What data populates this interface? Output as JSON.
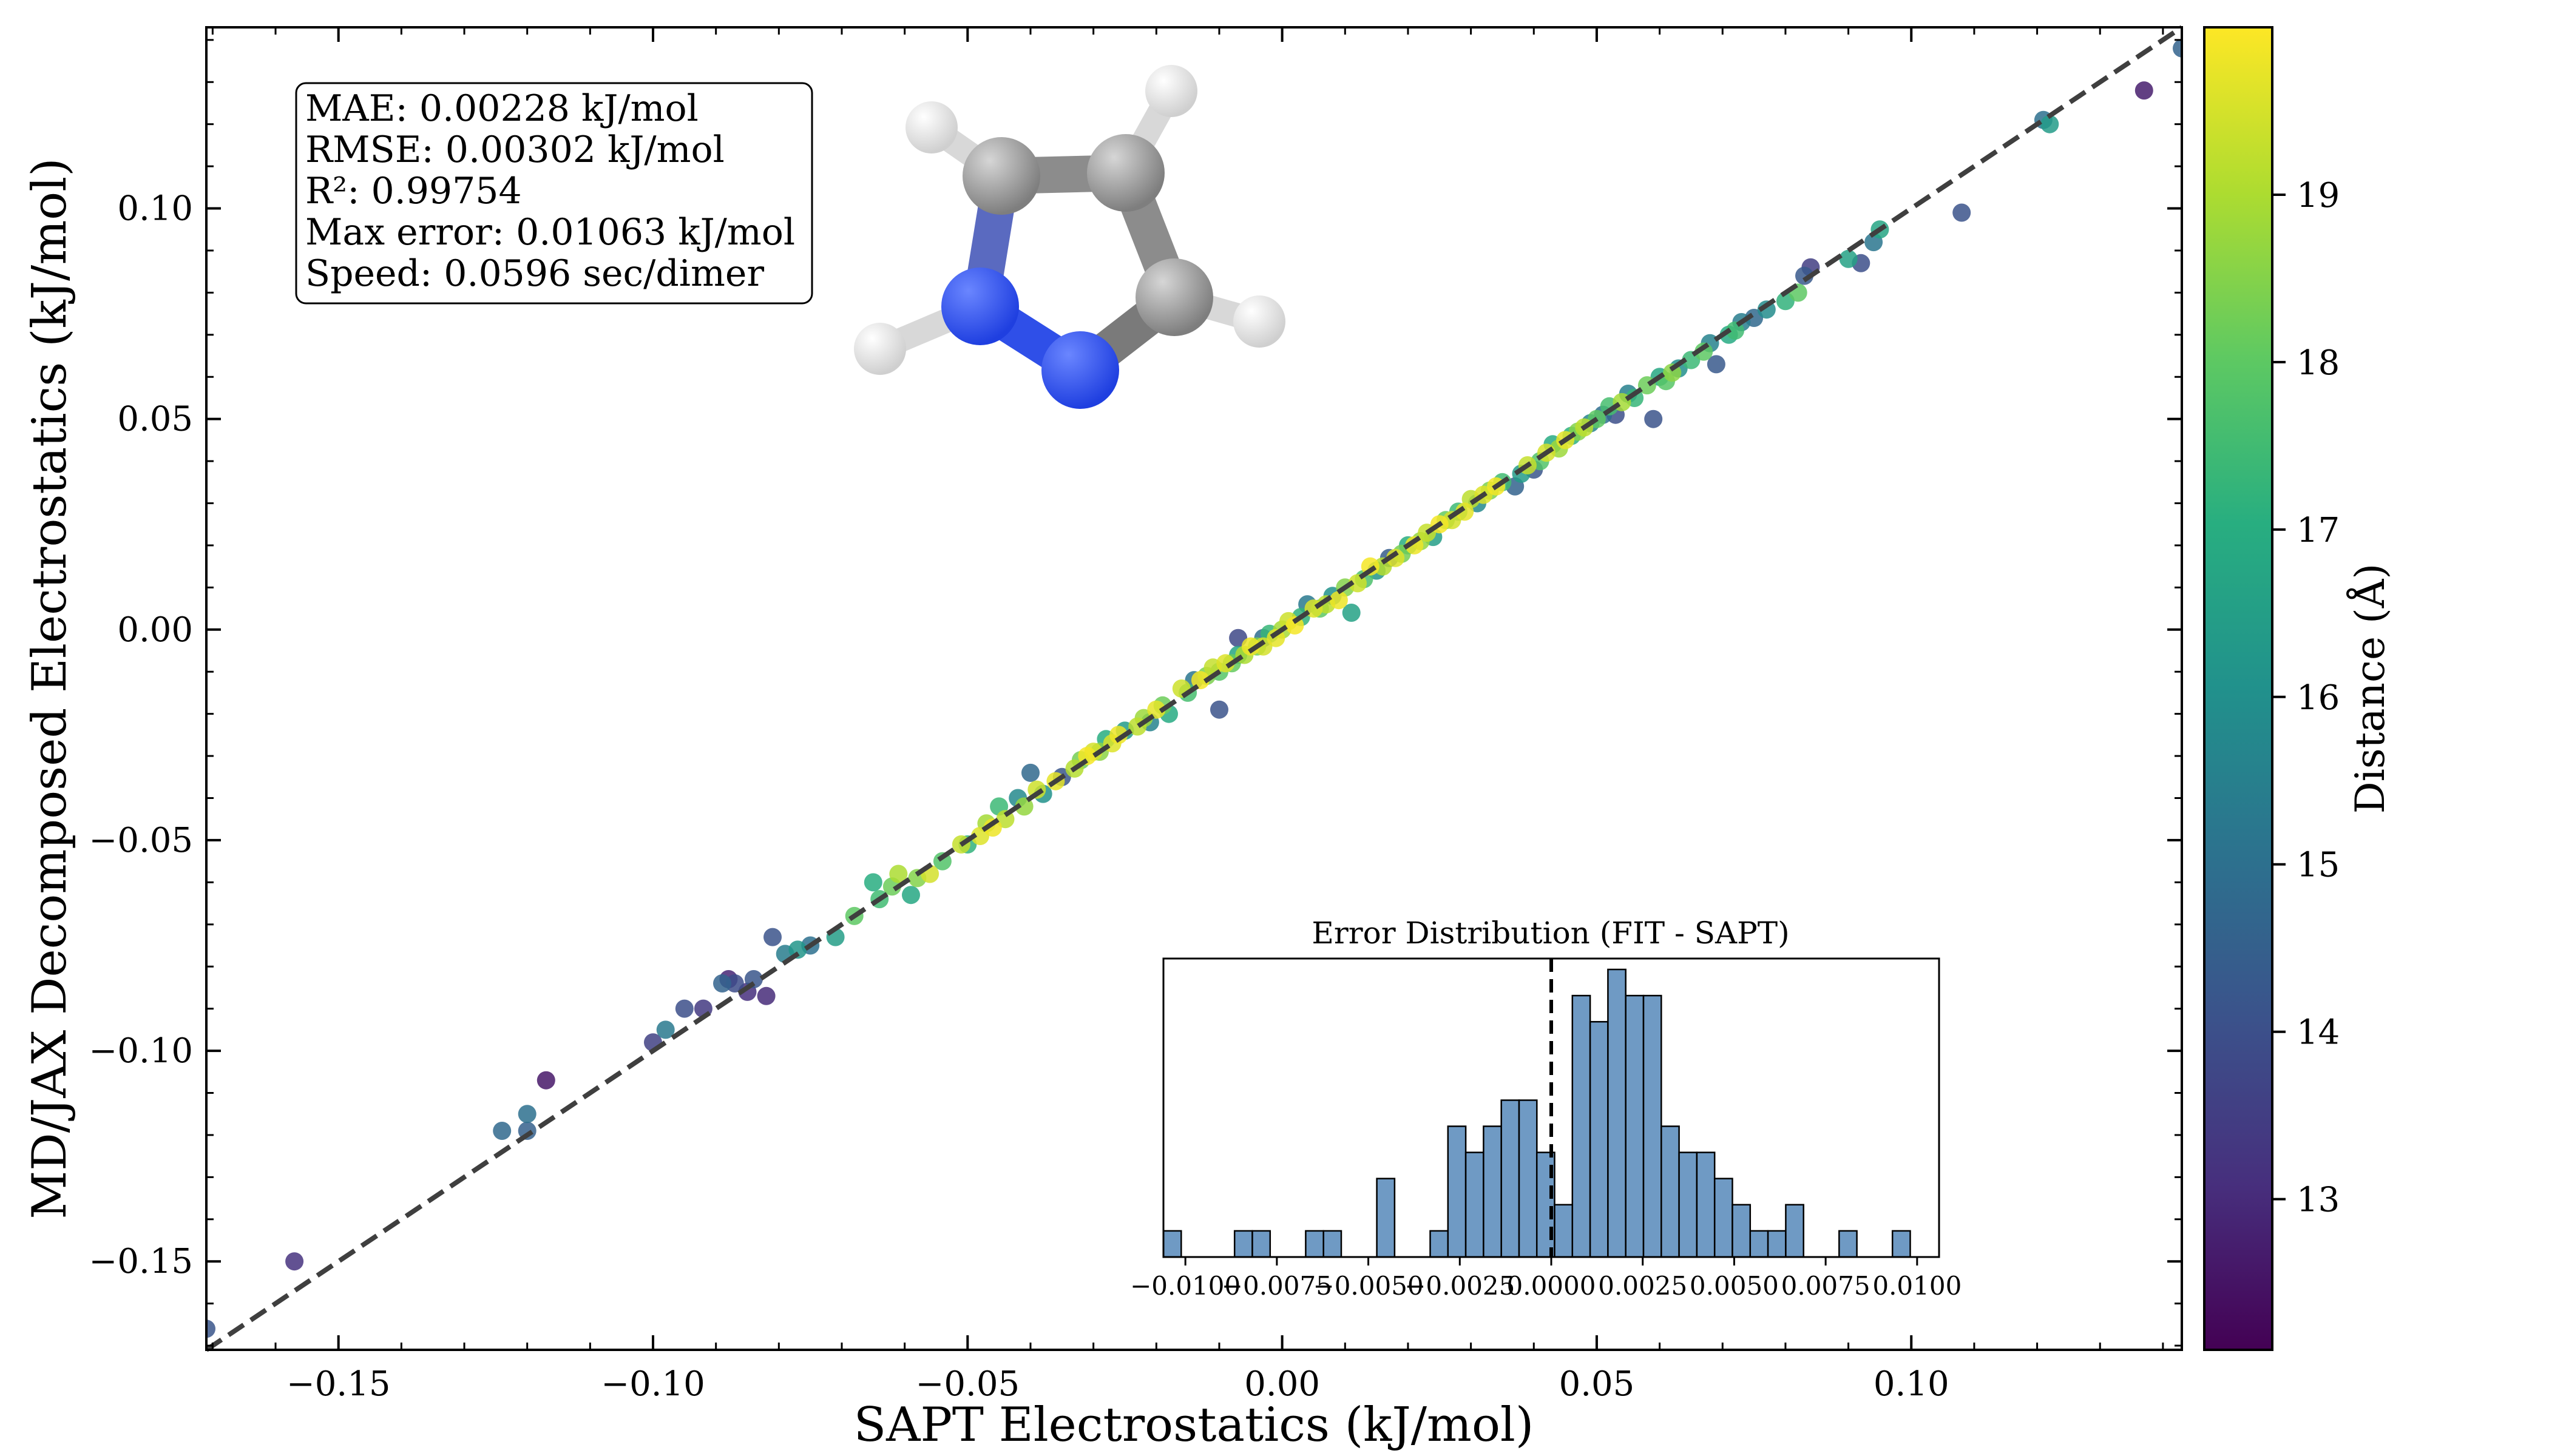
{
  "chart_data": [
    {
      "type": "scatter",
      "xlabel": "SAPT Electrostatics (kJ/mol)",
      "ylabel": "MD/JAX Decomposed Electrostatics (kJ/mol)",
      "xlim": [
        -0.171,
        0.143
      ],
      "ylim": [
        -0.171,
        0.143
      ],
      "xticks": [
        -0.15,
        -0.1,
        -0.05,
        0.0,
        0.05,
        0.1
      ],
      "xtick_labels": [
        "−0.15",
        "−0.10",
        "−0.05",
        "0.00",
        "0.05",
        "0.10"
      ],
      "yticks": [
        -0.15,
        -0.1,
        -0.05,
        0.0,
        0.05,
        0.1
      ],
      "ytick_labels": [
        "−0.15",
        "−0.10",
        "−0.05",
        "0.00",
        "0.05",
        "0.10"
      ],
      "reference_line": "y = x",
      "color_encoding": "Distance (Å)",
      "colorbar": {
        "label": "Distance (Å)",
        "range": [
          12.1,
          20.0
        ],
        "ticks": [
          13,
          14,
          15,
          16,
          17,
          18,
          19
        ],
        "tick_labels": [
          "13",
          "14",
          "15",
          "16",
          "17",
          "18",
          "19"
        ],
        "colormap": "viridis",
        "colors": [
          "#440154",
          "#472f7d",
          "#3b528b",
          "#2c728e",
          "#21918c",
          "#28ae80",
          "#5ec962",
          "#addc30",
          "#fde725"
        ]
      },
      "stats_box": [
        "MAE: 0.00228 kJ/mol",
        "RMSE: 0.00302 kJ/mol",
        "R²: 0.99754",
        "Max error: 0.01063 kJ/mol",
        "Speed: 0.0596 sec/dimer"
      ],
      "points": [
        [
          -0.171,
          -0.166,
          14.2
        ],
        [
          -0.157,
          -0.15,
          13.2
        ],
        [
          -0.124,
          -0.119,
          14.8
        ],
        [
          -0.12,
          -0.115,
          15.0
        ],
        [
          -0.12,
          -0.119,
          14.5
        ],
        [
          -0.117,
          -0.107,
          12.6
        ],
        [
          -0.1,
          -0.098,
          13.6
        ],
        [
          -0.098,
          -0.095,
          15.3
        ],
        [
          -0.095,
          -0.09,
          14.0
        ],
        [
          -0.092,
          -0.09,
          13.4
        ],
        [
          -0.089,
          -0.084,
          14.6
        ],
        [
          -0.088,
          -0.083,
          12.9
        ],
        [
          -0.087,
          -0.084,
          13.9
        ],
        [
          -0.085,
          -0.086,
          13.1
        ],
        [
          -0.084,
          -0.083,
          14.2
        ],
        [
          -0.082,
          -0.087,
          13.0
        ],
        [
          -0.081,
          -0.073,
          14.1
        ],
        [
          -0.079,
          -0.077,
          15.4
        ],
        [
          -0.077,
          -0.076,
          16.2
        ],
        [
          -0.075,
          -0.075,
          15.0
        ],
        [
          -0.071,
          -0.073,
          16.5
        ],
        [
          -0.068,
          -0.068,
          18.0
        ],
        [
          -0.065,
          -0.06,
          17.0
        ],
        [
          -0.064,
          -0.064,
          17.5
        ],
        [
          -0.062,
          -0.061,
          18.2
        ],
        [
          -0.061,
          -0.058,
          19.0
        ],
        [
          -0.059,
          -0.063,
          16.8
        ],
        [
          -0.058,
          -0.059,
          18.5
        ],
        [
          -0.056,
          -0.058,
          19.5
        ],
        [
          -0.054,
          -0.055,
          17.8
        ],
        [
          -0.051,
          -0.051,
          19.3
        ],
        [
          -0.05,
          -0.051,
          17.2
        ],
        [
          -0.048,
          -0.049,
          19.6
        ],
        [
          -0.047,
          -0.046,
          18.9
        ],
        [
          -0.046,
          -0.047,
          19.8
        ],
        [
          -0.045,
          -0.042,
          17.4
        ],
        [
          -0.044,
          -0.045,
          19.2
        ],
        [
          -0.042,
          -0.04,
          15.8
        ],
        [
          -0.041,
          -0.042,
          18.7
        ],
        [
          -0.04,
          -0.034,
          14.8
        ],
        [
          -0.039,
          -0.038,
          19.4
        ],
        [
          -0.038,
          -0.039,
          16.1
        ],
        [
          -0.036,
          -0.036,
          19.7
        ],
        [
          -0.035,
          -0.035,
          14.2
        ],
        [
          -0.033,
          -0.033,
          19.1
        ],
        [
          -0.032,
          -0.031,
          18.3
        ],
        [
          -0.031,
          -0.03,
          19.9
        ],
        [
          -0.03,
          -0.029,
          19.5
        ],
        [
          -0.029,
          -0.029,
          18.6
        ],
        [
          -0.028,
          -0.026,
          17.0
        ],
        [
          -0.027,
          -0.027,
          19.6
        ],
        [
          -0.026,
          -0.025,
          19.8
        ],
        [
          -0.025,
          -0.024,
          16.4
        ],
        [
          -0.023,
          -0.023,
          19.2
        ],
        [
          -0.022,
          -0.021,
          18.8
        ],
        [
          -0.021,
          -0.022,
          15.6
        ],
        [
          -0.02,
          -0.019,
          19.7
        ],
        [
          -0.019,
          -0.018,
          18.2
        ],
        [
          -0.018,
          -0.02,
          16.9
        ],
        [
          -0.016,
          -0.014,
          19.4
        ],
        [
          -0.015,
          -0.015,
          17.6
        ],
        [
          -0.014,
          -0.012,
          15.2
        ],
        [
          -0.013,
          -0.012,
          19.9
        ],
        [
          -0.012,
          -0.011,
          18.4
        ],
        [
          -0.011,
          -0.009,
          19.3
        ],
        [
          -0.01,
          -0.01,
          17.9
        ],
        [
          -0.01,
          -0.019,
          14.1
        ],
        [
          -0.009,
          -0.008,
          19.6
        ],
        [
          -0.008,
          -0.008,
          18.1
        ],
        [
          -0.007,
          -0.006,
          16.7
        ],
        [
          -0.007,
          -0.002,
          13.8
        ],
        [
          -0.006,
          -0.006,
          19.0
        ],
        [
          -0.005,
          -0.004,
          19.8
        ],
        [
          -0.004,
          -0.004,
          18.3
        ],
        [
          -0.003,
          -0.002,
          14.9
        ],
        [
          -0.003,
          -0.004,
          19.5
        ],
        [
          -0.002,
          -0.001,
          17.3
        ],
        [
          -0.001,
          -0.002,
          19.7
        ],
        [
          0.0,
          0.0,
          18.9
        ],
        [
          0.001,
          0.002,
          19.4
        ],
        [
          0.002,
          0.001,
          19.9
        ],
        [
          0.003,
          0.003,
          17.2
        ],
        [
          0.004,
          0.006,
          15.3
        ],
        [
          0.005,
          0.005,
          19.6
        ],
        [
          0.006,
          0.005,
          18.0
        ],
        [
          0.007,
          0.006,
          19.2
        ],
        [
          0.008,
          0.008,
          16.1
        ],
        [
          0.009,
          0.007,
          19.8
        ],
        [
          0.01,
          0.01,
          18.5
        ],
        [
          0.011,
          0.004,
          16.6
        ],
        [
          0.012,
          0.011,
          19.4
        ],
        [
          0.013,
          0.012,
          17.7
        ],
        [
          0.014,
          0.015,
          19.9
        ],
        [
          0.015,
          0.014,
          16.2
        ],
        [
          0.016,
          0.015,
          19.1
        ],
        [
          0.017,
          0.017,
          14.4
        ],
        [
          0.018,
          0.017,
          19.6
        ],
        [
          0.019,
          0.018,
          18.3
        ],
        [
          0.02,
          0.02,
          17.0
        ],
        [
          0.021,
          0.02,
          19.8
        ],
        [
          0.022,
          0.021,
          18.7
        ],
        [
          0.023,
          0.023,
          19.3
        ],
        [
          0.024,
          0.022,
          16.5
        ],
        [
          0.025,
          0.025,
          19.9
        ],
        [
          0.026,
          0.026,
          18.1
        ],
        [
          0.027,
          0.026,
          19.5
        ],
        [
          0.028,
          0.028,
          17.4
        ],
        [
          0.029,
          0.028,
          19.7
        ],
        [
          0.03,
          0.031,
          19.2
        ],
        [
          0.031,
          0.03,
          15.8
        ],
        [
          0.032,
          0.032,
          19.6
        ],
        [
          0.033,
          0.033,
          18.4
        ],
        [
          0.034,
          0.034,
          19.9
        ],
        [
          0.035,
          0.035,
          17.5
        ],
        [
          0.037,
          0.034,
          14.6
        ],
        [
          0.038,
          0.037,
          16.4
        ],
        [
          0.039,
          0.039,
          19.3
        ],
        [
          0.04,
          0.038,
          14.2
        ],
        [
          0.041,
          0.04,
          17.8
        ],
        [
          0.042,
          0.042,
          19.5
        ],
        [
          0.043,
          0.044,
          16.9
        ],
        [
          0.044,
          0.043,
          18.8
        ],
        [
          0.045,
          0.045,
          19.7
        ],
        [
          0.046,
          0.046,
          17.1
        ],
        [
          0.047,
          0.047,
          18.5
        ],
        [
          0.048,
          0.048,
          19.2
        ],
        [
          0.049,
          0.049,
          15.6
        ],
        [
          0.05,
          0.05,
          18.0
        ],
        [
          0.051,
          0.051,
          14.9
        ],
        [
          0.052,
          0.053,
          17.6
        ],
        [
          0.053,
          0.051,
          14.0
        ],
        [
          0.054,
          0.054,
          18.9
        ],
        [
          0.055,
          0.056,
          15.5
        ],
        [
          0.056,
          0.055,
          17.3
        ],
        [
          0.058,
          0.058,
          18.2
        ],
        [
          0.059,
          0.05,
          14.1
        ],
        [
          0.06,
          0.06,
          16.8
        ],
        [
          0.061,
          0.059,
          17.9
        ],
        [
          0.062,
          0.061,
          18.6
        ],
        [
          0.063,
          0.062,
          16.0
        ],
        [
          0.065,
          0.064,
          17.4
        ],
        [
          0.067,
          0.066,
          18.0
        ],
        [
          0.068,
          0.068,
          15.6
        ],
        [
          0.069,
          0.063,
          14.3
        ],
        [
          0.071,
          0.07,
          16.9
        ],
        [
          0.072,
          0.071,
          17.5
        ],
        [
          0.073,
          0.073,
          15.4
        ],
        [
          0.075,
          0.074,
          14.8
        ],
        [
          0.077,
          0.076,
          15.9
        ],
        [
          0.08,
          0.078,
          17.2
        ],
        [
          0.082,
          0.08,
          18.0
        ],
        [
          0.083,
          0.084,
          14.3
        ],
        [
          0.084,
          0.086,
          13.5
        ],
        [
          0.09,
          0.088,
          16.6
        ],
        [
          0.092,
          0.087,
          14.0
        ],
        [
          0.094,
          0.092,
          15.2
        ],
        [
          0.095,
          0.095,
          16.7
        ],
        [
          0.108,
          0.099,
          14.1
        ],
        [
          0.121,
          0.121,
          15.0
        ],
        [
          0.122,
          0.12,
          16.4
        ],
        [
          0.137,
          0.128,
          12.7
        ],
        [
          0.143,
          0.138,
          14.6
        ]
      ]
    },
    {
      "type": "bar",
      "title": "Error Distribution (FIT - SAPT)",
      "xlim": [
        -0.0106,
        0.0106
      ],
      "xticks": [
        -0.01,
        -0.0075,
        -0.005,
        -0.0025,
        0.0,
        0.0025,
        0.005,
        0.0075,
        0.01
      ],
      "xtick_labels": [
        "−0.0100",
        "−0.0075",
        "−0.0050",
        "−0.0025",
        "0.0000",
        "0.0025",
        "0.0050",
        "0.0075",
        "0.0100"
      ],
      "bin_start": -0.0106,
      "bin_width": 0.000486,
      "values": [
        1,
        0,
        0,
        0,
        1,
        1,
        0,
        0,
        1,
        1,
        0,
        0,
        3,
        0,
        0,
        1,
        5,
        4,
        5,
        6,
        6,
        4,
        2,
        10,
        9,
        11,
        10,
        10,
        5,
        4,
        4,
        3,
        2,
        1,
        1,
        2,
        0,
        0,
        1,
        0,
        0,
        1
      ],
      "vline_x": 0.0,
      "bar_color": "#6f9ac4"
    }
  ]
}
